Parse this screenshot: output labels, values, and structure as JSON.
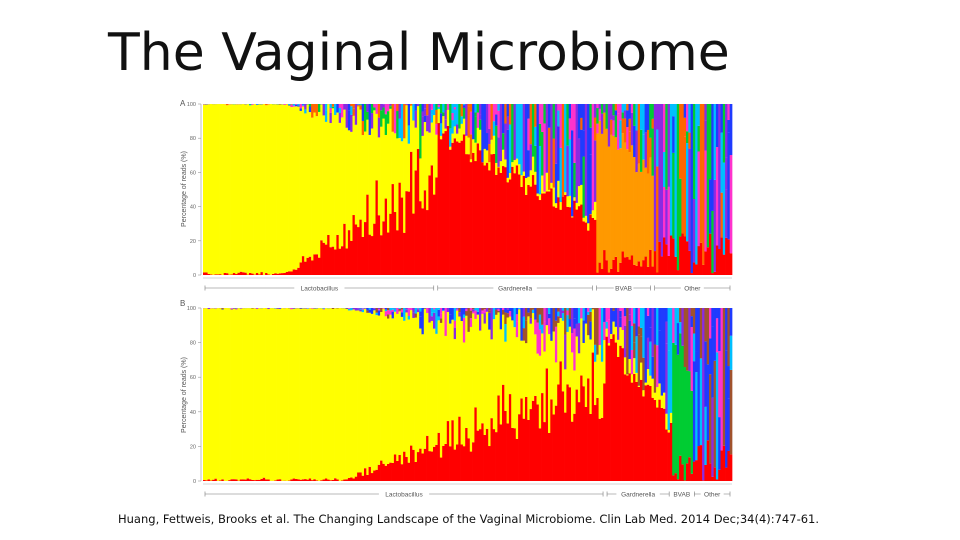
{
  "slide": {
    "title": "The Vaginal Microbiome",
    "citation": "Huang, Fettweis, Brooks et al. The Changing Landscape of the Vaginal Microbiome. Clin Lab Med. 2014 Dec;34(4):747-61."
  },
  "chart_data": [
    {
      "type": "bar",
      "panel": "A",
      "subtype": "stacked-100",
      "ylabel": "Percentage of reads (%)",
      "ylim": [
        0,
        100
      ],
      "yticks": [
        0,
        20,
        40,
        60,
        80,
        100
      ],
      "groups": [
        {
          "label": "Lactobacillus",
          "start": 0.0,
          "end": 0.44
        },
        {
          "label": "Gardnerella",
          "start": 0.44,
          "end": 0.74
        },
        {
          "label": "BVAB",
          "start": 0.74,
          "end": 0.85
        },
        {
          "label": "Other",
          "start": 0.85,
          "end": 1.0
        }
      ],
      "series_colors": {
        "Lactobacillus": "#ffff00",
        "Gardnerella": "#ff0000",
        "BVAB": "#ff9900",
        "Other": [
          "#8a2be2",
          "#1f3bff",
          "#00bfff",
          "#00cc33",
          "#ff33cc",
          "#ff6600"
        ]
      }
    },
    {
      "type": "bar",
      "panel": "B",
      "subtype": "stacked-100",
      "ylabel": "Percentage of reads (%)",
      "ylim": [
        0,
        100
      ],
      "yticks": [
        0,
        20,
        40,
        60,
        80,
        100
      ],
      "groups": [
        {
          "label": "Lactobacillus",
          "start": 0.0,
          "end": 0.76
        },
        {
          "label": "Gardnerella",
          "start": 0.76,
          "end": 0.885
        },
        {
          "label": "BVAB",
          "start": 0.885,
          "end": 0.925
        },
        {
          "label": "Other",
          "start": 0.925,
          "end": 1.0
        }
      ],
      "series_colors": {
        "Lactobacillus": "#ffff00",
        "Gardnerella": "#ff0000",
        "BVAB": "#00cc33",
        "Other": [
          "#1f3bff",
          "#8a2be2",
          "#00bfff",
          "#a0522d",
          "#ff33cc"
        ]
      }
    }
  ]
}
